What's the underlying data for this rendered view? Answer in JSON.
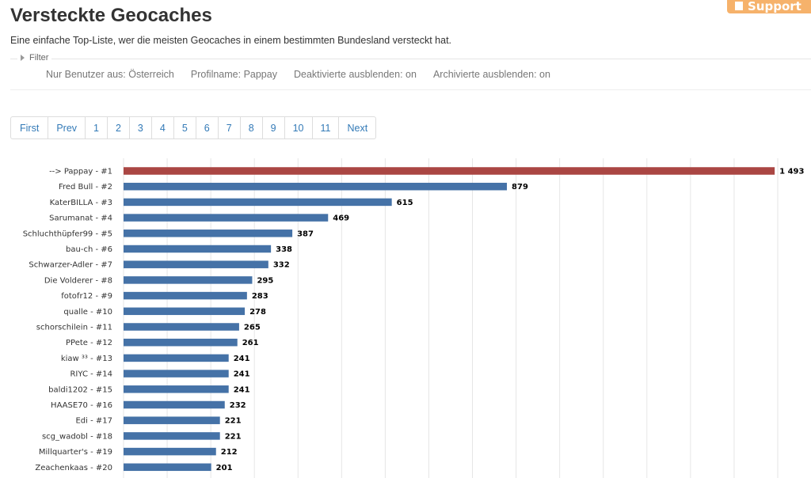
{
  "header": {
    "title": "Versteckte Geocaches",
    "subtitle": "Eine einfache Top-Liste, wer die meisten Geocaches in einem bestimmten Bundesland versteckt hat.",
    "support_label": "Support"
  },
  "filter": {
    "legend": "Filter",
    "items": [
      "Nur Benutzer aus: Österreich",
      "Profilname: Pappay",
      "Deaktivierte ausblenden: on",
      "Archivierte ausblenden: on"
    ]
  },
  "pagination": {
    "first": "First",
    "prev": "Prev",
    "pages": [
      "1",
      "2",
      "3",
      "4",
      "5",
      "6",
      "7",
      "8",
      "9",
      "10",
      "11"
    ],
    "next": "Next"
  },
  "chart_data": {
    "type": "bar",
    "orientation": "horizontal",
    "categories": [
      "--> Pappay - #1",
      "Fred Bull - #2",
      "KaterBILLA - #3",
      "Sarumanat - #4",
      "Schluchthüpfer99 - #5",
      "bau-ch - #6",
      "Schwarzer-Adler - #7",
      "Die Volderer - #8",
      "fotofr12 - #9",
      "qualle - #10",
      "schorschilein - #11",
      "PPete - #12",
      "kiaw ³³ - #13",
      "RIYC - #14",
      "baldi1202 - #15",
      "HAASE70 - #16",
      "Edi - #17",
      "scg_wadobl - #18",
      "Millquarter's - #19",
      "Zeachenkaas - #20"
    ],
    "values": [
      1493,
      879,
      615,
      469,
      387,
      338,
      332,
      295,
      283,
      278,
      265,
      261,
      241,
      241,
      241,
      232,
      221,
      221,
      212,
      201
    ],
    "value_labels": [
      "1 493",
      "879",
      "615",
      "469",
      "387",
      "338",
      "332",
      "295",
      "283",
      "278",
      "265",
      "261",
      "241",
      "241",
      "241",
      "232",
      "221",
      "221",
      "212",
      "201"
    ],
    "highlight_index": 0,
    "colors": {
      "bar": "#4572a7",
      "highlight": "#aa4643",
      "grid": "#e6e6e6"
    },
    "xlim": [
      0,
      1500
    ],
    "grid": true,
    "legend": false
  }
}
